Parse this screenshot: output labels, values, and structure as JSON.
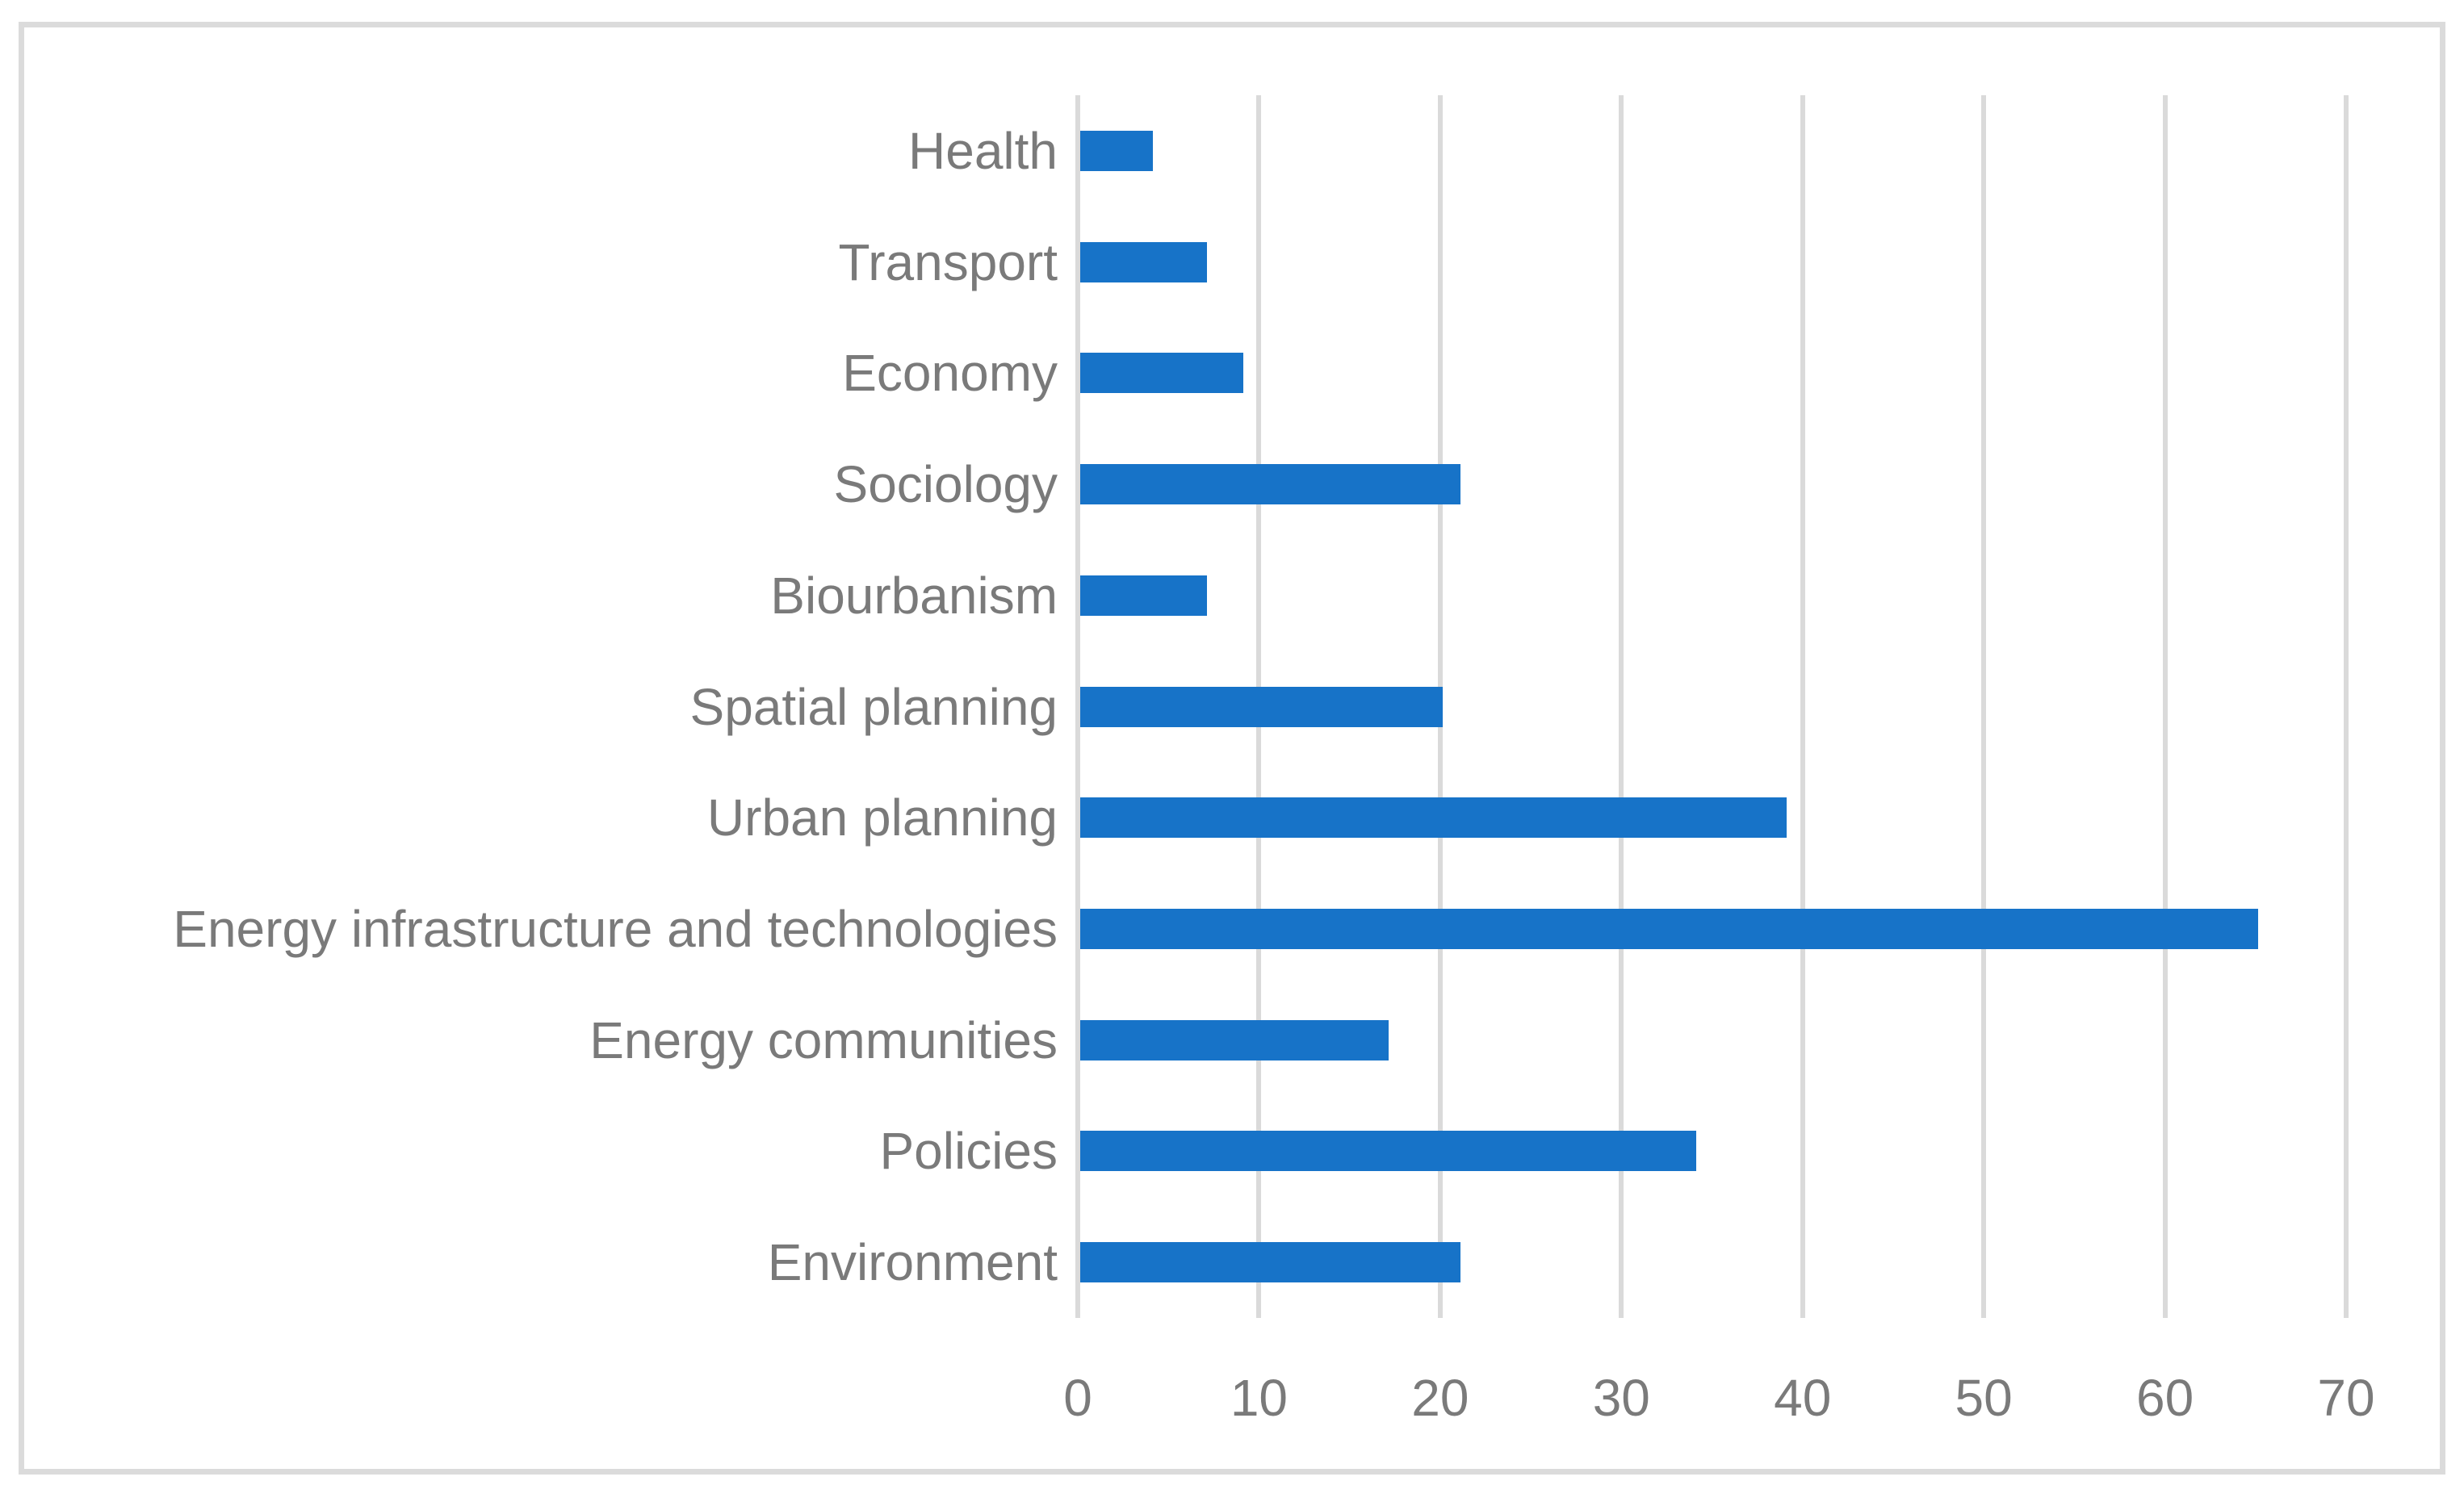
{
  "canvas": {
    "background_color": "#FFFFFF",
    "frame_border_color": "#DBDBDB"
  },
  "chart_data": {
    "type": "bar",
    "orientation": "horizontal",
    "title": "",
    "xlabel": "",
    "ylabel": "",
    "categories": [
      "Health",
      "Transport",
      "Economy",
      "Sociology",
      "Biourbanism",
      "Spatial planning",
      "Urban planning",
      "Energy infrastructure and technologies",
      "Energy communities",
      "Policies",
      "Environment"
    ],
    "values": [
      4,
      7,
      9,
      21,
      7,
      20,
      39,
      65,
      17,
      34,
      21
    ],
    "xlim": [
      0,
      70
    ],
    "x_ticks": [
      0,
      10,
      20,
      30,
      40,
      50,
      60,
      70
    ],
    "grid": true,
    "legend": "none",
    "bar_color": "#1773C8",
    "gridline_color": "#DADADA",
    "text_color": "#7A7A7A"
  }
}
